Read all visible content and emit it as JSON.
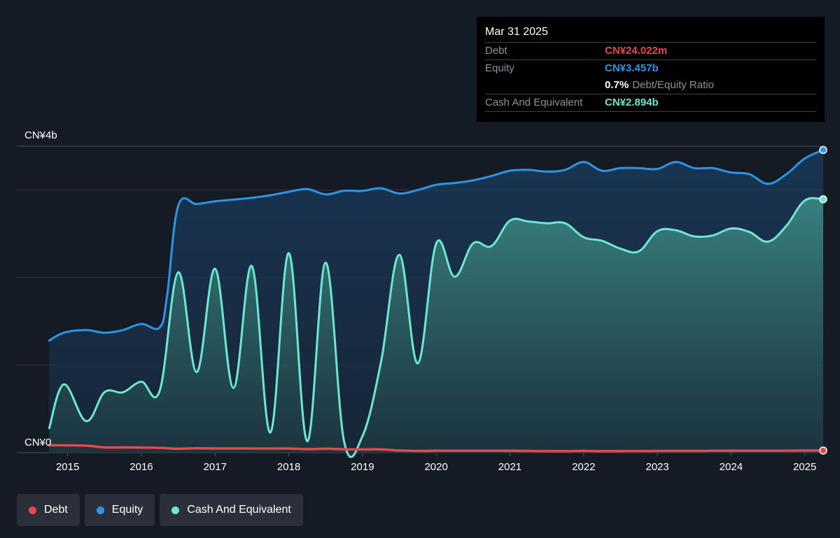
{
  "tooltip": {
    "date": "Mar 31 2025",
    "debt_label": "Debt",
    "debt_value": "CN¥24.022m",
    "equity_label": "Equity",
    "equity_value": "CN¥3.457b",
    "ratio_pct": "0.7%",
    "ratio_label": "Debt/Equity Ratio",
    "cash_label": "Cash And Equivalent",
    "cash_value": "CN¥2.894b"
  },
  "colors": {
    "background": "#151b24",
    "debt": "#e5484d",
    "equity": "#2b95e8",
    "cash": "#6de6d2",
    "grid": "#2c323c",
    "axis_text": "#ffffff"
  },
  "legend": [
    {
      "label": "Debt",
      "color": "#e5484d"
    },
    {
      "label": "Equity",
      "color": "#2b95e8"
    },
    {
      "label": "Cash And Equivalent",
      "color": "#6de6d2"
    }
  ],
  "chart_data": {
    "type": "area",
    "title": "",
    "xlabel": "",
    "ylabel": "",
    "y_unit": "CN¥ billions",
    "ylim": [
      0,
      3.5
    ],
    "xlim": [
      2014.5,
      2025.25
    ],
    "y_tick_labels": [
      {
        "value": 3.5,
        "label": "CN¥4b"
      },
      {
        "value": 0,
        "label": "CN¥0"
      }
    ],
    "x_ticks": [
      2015,
      2016,
      2017,
      2018,
      2019,
      2020,
      2021,
      2022,
      2023,
      2024,
      2025
    ],
    "grid_values": [
      3.0,
      2.0,
      1.0
    ],
    "grid": true,
    "legend_position": "bottom-left",
    "series": [
      {
        "name": "Equity",
        "color": "#2b95e8",
        "points": [
          [
            2014.75,
            1.28
          ],
          [
            2014.95,
            1.37
          ],
          [
            2015.25,
            1.4
          ],
          [
            2015.5,
            1.37
          ],
          [
            2015.75,
            1.4
          ],
          [
            2016.0,
            1.47
          ],
          [
            2016.25,
            1.43
          ],
          [
            2016.35,
            1.8
          ],
          [
            2016.5,
            2.82
          ],
          [
            2016.75,
            2.84
          ],
          [
            2017.0,
            2.87
          ],
          [
            2017.25,
            2.89
          ],
          [
            2017.5,
            2.91
          ],
          [
            2017.75,
            2.94
          ],
          [
            2018.0,
            2.98
          ],
          [
            2018.25,
            3.01
          ],
          [
            2018.5,
            2.95
          ],
          [
            2018.75,
            2.99
          ],
          [
            2019.0,
            2.99
          ],
          [
            2019.25,
            3.02
          ],
          [
            2019.5,
            2.96
          ],
          [
            2019.75,
            3.0
          ],
          [
            2020.0,
            3.06
          ],
          [
            2020.25,
            3.08
          ],
          [
            2020.5,
            3.11
          ],
          [
            2020.75,
            3.16
          ],
          [
            2021.0,
            3.22
          ],
          [
            2021.25,
            3.23
          ],
          [
            2021.5,
            3.21
          ],
          [
            2021.75,
            3.23
          ],
          [
            2022.0,
            3.32
          ],
          [
            2022.25,
            3.22
          ],
          [
            2022.5,
            3.25
          ],
          [
            2022.75,
            3.25
          ],
          [
            2023.0,
            3.24
          ],
          [
            2023.25,
            3.32
          ],
          [
            2023.5,
            3.25
          ],
          [
            2023.75,
            3.25
          ],
          [
            2024.0,
            3.2
          ],
          [
            2024.25,
            3.18
          ],
          [
            2024.5,
            3.07
          ],
          [
            2024.75,
            3.18
          ],
          [
            2025.0,
            3.36
          ],
          [
            2025.25,
            3.457
          ]
        ]
      },
      {
        "name": "Cash And Equivalent",
        "color": "#6de6d2",
        "points": [
          [
            2014.75,
            0.28
          ],
          [
            2014.95,
            0.78
          ],
          [
            2015.25,
            0.36
          ],
          [
            2015.5,
            0.69
          ],
          [
            2015.75,
            0.69
          ],
          [
            2016.0,
            0.81
          ],
          [
            2016.25,
            0.71
          ],
          [
            2016.5,
            2.06
          ],
          [
            2016.75,
            0.92
          ],
          [
            2017.0,
            2.1
          ],
          [
            2017.25,
            0.74
          ],
          [
            2017.5,
            2.13
          ],
          [
            2017.75,
            0.23
          ],
          [
            2018.0,
            2.28
          ],
          [
            2018.25,
            0.13
          ],
          [
            2018.5,
            2.17
          ],
          [
            2018.75,
            0.13
          ],
          [
            2019.0,
            0.19
          ],
          [
            2019.25,
            1.03
          ],
          [
            2019.5,
            2.26
          ],
          [
            2019.75,
            1.02
          ],
          [
            2020.0,
            2.39
          ],
          [
            2020.25,
            2.01
          ],
          [
            2020.5,
            2.39
          ],
          [
            2020.75,
            2.36
          ],
          [
            2021.0,
            2.65
          ],
          [
            2021.25,
            2.64
          ],
          [
            2021.5,
            2.62
          ],
          [
            2021.75,
            2.62
          ],
          [
            2022.0,
            2.46
          ],
          [
            2022.25,
            2.42
          ],
          [
            2022.5,
            2.33
          ],
          [
            2022.75,
            2.3
          ],
          [
            2023.0,
            2.53
          ],
          [
            2023.25,
            2.54
          ],
          [
            2023.5,
            2.47
          ],
          [
            2023.75,
            2.48
          ],
          [
            2024.0,
            2.56
          ],
          [
            2024.25,
            2.52
          ],
          [
            2024.5,
            2.41
          ],
          [
            2024.75,
            2.59
          ],
          [
            2025.0,
            2.88
          ],
          [
            2025.25,
            2.894
          ]
        ]
      },
      {
        "name": "Debt",
        "color": "#e5484d",
        "points": [
          [
            2014.75,
            0.085
          ],
          [
            2015.0,
            0.083
          ],
          [
            2015.25,
            0.08
          ],
          [
            2015.5,
            0.06
          ],
          [
            2015.75,
            0.06
          ],
          [
            2016.0,
            0.058
          ],
          [
            2016.25,
            0.055
          ],
          [
            2016.5,
            0.045
          ],
          [
            2016.75,
            0.05
          ],
          [
            2017.0,
            0.048
          ],
          [
            2017.25,
            0.048
          ],
          [
            2017.5,
            0.047
          ],
          [
            2017.75,
            0.047
          ],
          [
            2018.0,
            0.047
          ],
          [
            2018.25,
            0.04
          ],
          [
            2018.5,
            0.045
          ],
          [
            2018.75,
            0.038
          ],
          [
            2019.0,
            0.037
          ],
          [
            2019.25,
            0.037
          ],
          [
            2019.5,
            0.025
          ],
          [
            2019.75,
            0.02
          ],
          [
            2020.0,
            0.022
          ],
          [
            2020.25,
            0.022
          ],
          [
            2020.5,
            0.022
          ],
          [
            2020.75,
            0.022
          ],
          [
            2021.0,
            0.022
          ],
          [
            2021.25,
            0.02
          ],
          [
            2021.5,
            0.017
          ],
          [
            2021.75,
            0.017
          ],
          [
            2022.0,
            0.02
          ],
          [
            2022.25,
            0.017
          ],
          [
            2022.5,
            0.018
          ],
          [
            2022.75,
            0.018
          ],
          [
            2023.0,
            0.02
          ],
          [
            2023.25,
            0.02
          ],
          [
            2023.5,
            0.02
          ],
          [
            2023.75,
            0.022
          ],
          [
            2024.0,
            0.022
          ],
          [
            2024.25,
            0.022
          ],
          [
            2024.5,
            0.022
          ],
          [
            2024.75,
            0.022
          ],
          [
            2025.0,
            0.024
          ],
          [
            2025.25,
            0.024
          ]
        ]
      }
    ]
  }
}
